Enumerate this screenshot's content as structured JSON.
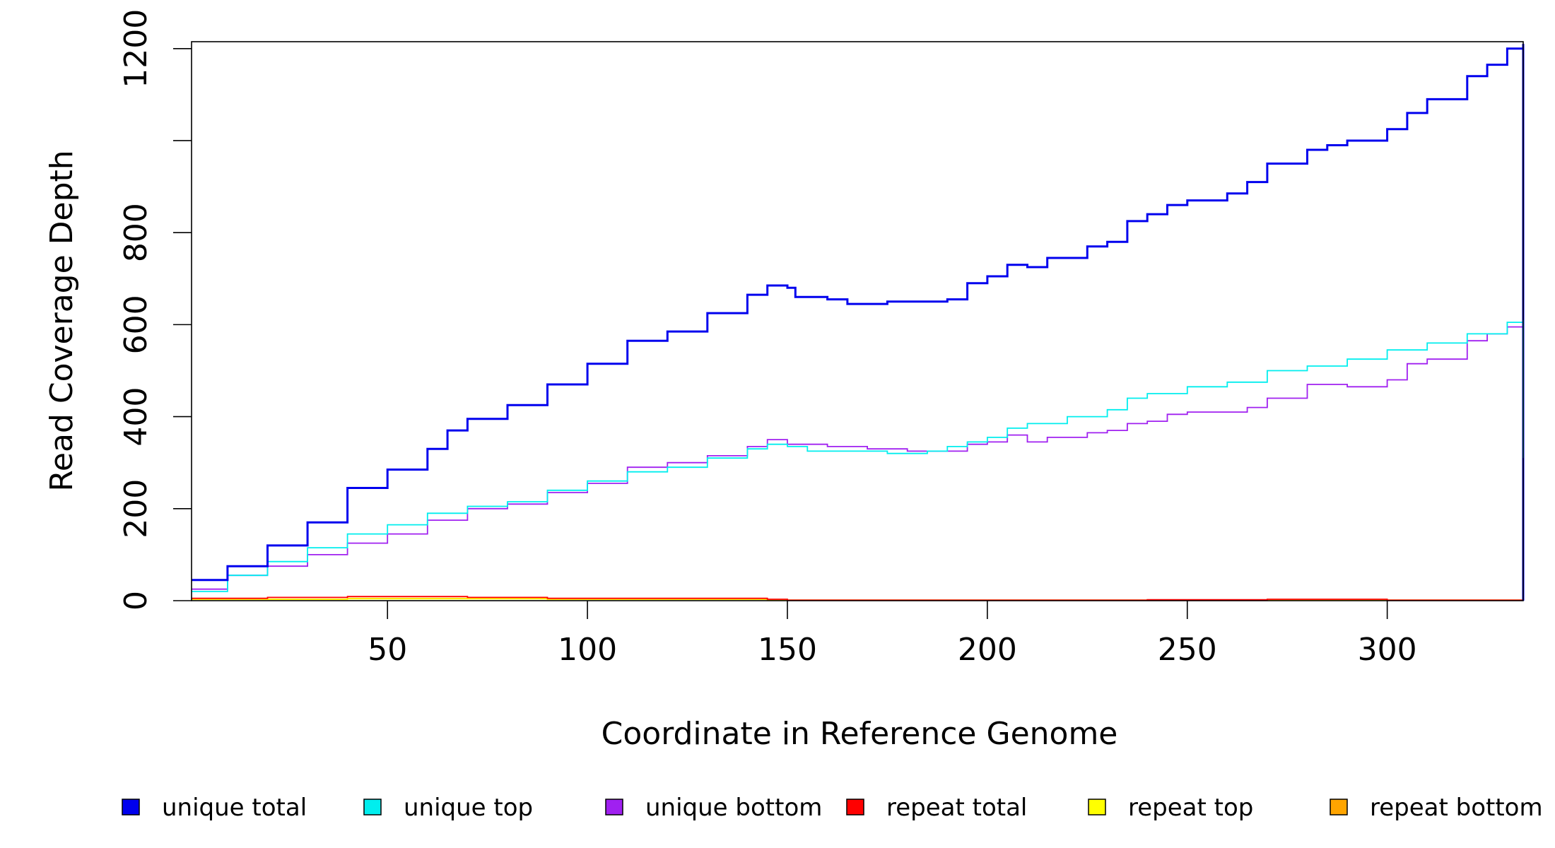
{
  "chart_data": {
    "type": "line",
    "step": true,
    "xlabel": "Coordinate in Reference Genome",
    "ylabel": "Read Coverage Depth",
    "xlim": [
      1,
      334
    ],
    "ylim": [
      0,
      1215
    ],
    "x_ticks": [
      50,
      100,
      150,
      200,
      250,
      300
    ],
    "y_ticks": [
      0,
      200,
      400,
      600,
      800,
      1000,
      1200
    ],
    "y_tick_labels": [
      "0",
      "200",
      "400",
      "600",
      "800",
      "",
      "1200"
    ],
    "grid": false,
    "legend_position": "bottom",
    "series": [
      {
        "name": "unique total",
        "color": "#0000ee",
        "points": [
          [
            1,
            45
          ],
          [
            10,
            75
          ],
          [
            20,
            120
          ],
          [
            30,
            170
          ],
          [
            40,
            245
          ],
          [
            50,
            285
          ],
          [
            60,
            330
          ],
          [
            65,
            370
          ],
          [
            70,
            395
          ],
          [
            80,
            425
          ],
          [
            90,
            470
          ],
          [
            100,
            515
          ],
          [
            110,
            565
          ],
          [
            120,
            585
          ],
          [
            130,
            625
          ],
          [
            140,
            665
          ],
          [
            145,
            685
          ],
          [
            150,
            680
          ],
          [
            152,
            660
          ],
          [
            160,
            655
          ],
          [
            165,
            645
          ],
          [
            175,
            650
          ],
          [
            185,
            650
          ],
          [
            190,
            655
          ],
          [
            195,
            690
          ],
          [
            200,
            705
          ],
          [
            205,
            730
          ],
          [
            210,
            725
          ],
          [
            215,
            745
          ],
          [
            225,
            770
          ],
          [
            230,
            780
          ],
          [
            235,
            825
          ],
          [
            240,
            840
          ],
          [
            245,
            860
          ],
          [
            250,
            870
          ],
          [
            260,
            885
          ],
          [
            265,
            910
          ],
          [
            270,
            950
          ],
          [
            280,
            980
          ],
          [
            285,
            990
          ],
          [
            290,
            1000
          ],
          [
            300,
            1025
          ],
          [
            305,
            1060
          ],
          [
            310,
            1090
          ],
          [
            320,
            1140
          ],
          [
            325,
            1165
          ],
          [
            330,
            1200
          ],
          [
            334,
            1210
          ]
        ]
      },
      {
        "name": "unique top",
        "color": "#00eeee",
        "points": [
          [
            1,
            20
          ],
          [
            10,
            55
          ],
          [
            20,
            85
          ],
          [
            30,
            115
          ],
          [
            40,
            145
          ],
          [
            50,
            165
          ],
          [
            60,
            190
          ],
          [
            70,
            205
          ],
          [
            80,
            215
          ],
          [
            90,
            240
          ],
          [
            100,
            260
          ],
          [
            110,
            280
          ],
          [
            120,
            290
          ],
          [
            130,
            310
          ],
          [
            140,
            330
          ],
          [
            145,
            340
          ],
          [
            150,
            335
          ],
          [
            155,
            325
          ],
          [
            165,
            325
          ],
          [
            175,
            320
          ],
          [
            185,
            325
          ],
          [
            190,
            335
          ],
          [
            195,
            345
          ],
          [
            200,
            355
          ],
          [
            205,
            375
          ],
          [
            210,
            385
          ],
          [
            220,
            400
          ],
          [
            230,
            415
          ],
          [
            235,
            440
          ],
          [
            240,
            450
          ],
          [
            250,
            465
          ],
          [
            260,
            475
          ],
          [
            270,
            500
          ],
          [
            280,
            510
          ],
          [
            290,
            525
          ],
          [
            300,
            545
          ],
          [
            310,
            560
          ],
          [
            320,
            580
          ],
          [
            330,
            605
          ],
          [
            334,
            610
          ]
        ]
      },
      {
        "name": "unique bottom",
        "color": "#a020f0",
        "points": [
          [
            1,
            25
          ],
          [
            10,
            55
          ],
          [
            20,
            75
          ],
          [
            30,
            100
          ],
          [
            40,
            125
          ],
          [
            50,
            145
          ],
          [
            60,
            175
          ],
          [
            70,
            200
          ],
          [
            80,
            210
          ],
          [
            90,
            235
          ],
          [
            100,
            255
          ],
          [
            110,
            290
          ],
          [
            120,
            300
          ],
          [
            130,
            315
          ],
          [
            140,
            335
          ],
          [
            145,
            350
          ],
          [
            150,
            340
          ],
          [
            160,
            335
          ],
          [
            170,
            330
          ],
          [
            180,
            325
          ],
          [
            190,
            325
          ],
          [
            195,
            340
          ],
          [
            200,
            345
          ],
          [
            205,
            360
          ],
          [
            210,
            345
          ],
          [
            215,
            355
          ],
          [
            225,
            365
          ],
          [
            230,
            370
          ],
          [
            235,
            385
          ],
          [
            240,
            390
          ],
          [
            245,
            405
          ],
          [
            250,
            410
          ],
          [
            260,
            410
          ],
          [
            265,
            420
          ],
          [
            270,
            440
          ],
          [
            280,
            470
          ],
          [
            290,
            465
          ],
          [
            300,
            480
          ],
          [
            305,
            515
          ],
          [
            310,
            525
          ],
          [
            320,
            565
          ],
          [
            325,
            580
          ],
          [
            330,
            595
          ],
          [
            334,
            605
          ]
        ]
      },
      {
        "name": "repeat total",
        "color": "#ff0000",
        "points": [
          [
            1,
            5
          ],
          [
            20,
            7
          ],
          [
            40,
            9
          ],
          [
            70,
            7
          ],
          [
            90,
            5
          ],
          [
            145,
            3
          ],
          [
            150,
            1
          ],
          [
            230,
            1
          ],
          [
            240,
            2
          ],
          [
            270,
            3
          ],
          [
            300,
            1
          ],
          [
            334,
            1
          ]
        ]
      },
      {
        "name": "repeat top",
        "color": "#ffff00",
        "points": [
          [
            1,
            3
          ],
          [
            40,
            4
          ],
          [
            90,
            3
          ],
          [
            145,
            1
          ],
          [
            334,
            1
          ]
        ]
      },
      {
        "name": "repeat bottom",
        "color": "#ffa500",
        "points": [
          [
            1,
            3
          ],
          [
            40,
            5
          ],
          [
            90,
            3
          ],
          [
            145,
            1
          ],
          [
            240,
            1
          ],
          [
            270,
            2
          ],
          [
            300,
            1
          ],
          [
            334,
            1
          ]
        ]
      }
    ]
  }
}
